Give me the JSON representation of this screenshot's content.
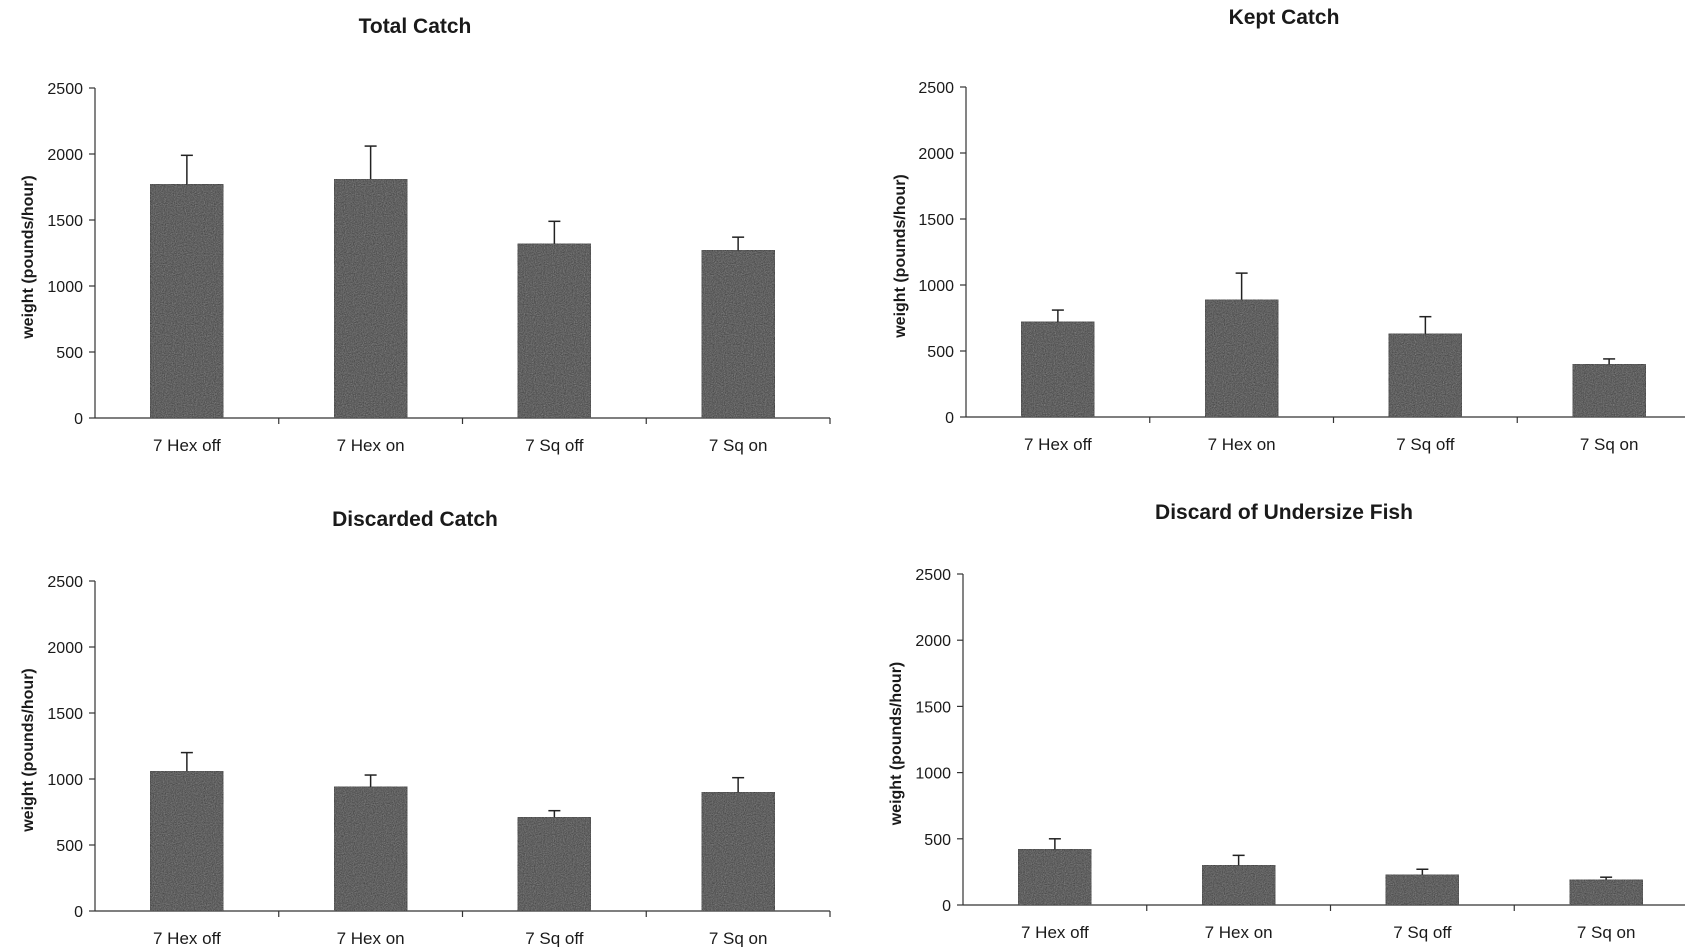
{
  "colors": {
    "bar_fill": "#3a3a3a",
    "bar_stroke": "#222222",
    "axis": "#333333",
    "text": "#1a1a1a",
    "background": "#ffffff"
  },
  "chart_data": [
    {
      "type": "bar",
      "title": "Total Catch",
      "ylabel": "weight (pounds/hour)",
      "xlabel": "",
      "categories": [
        "7 Hex off",
        "7 Hex on",
        "7 Sq off",
        "7 Sq on"
      ],
      "values": [
        1770,
        1810,
        1320,
        1270
      ],
      "error_upper": [
        220,
        250,
        170,
        100
      ],
      "yticks": [
        0,
        500,
        1000,
        1500,
        2000,
        2500
      ],
      "ylim": [
        0,
        2500
      ],
      "grid": false,
      "legend": "none"
    },
    {
      "type": "bar",
      "title": "Kept Catch",
      "ylabel": "weight (pounds/hour)",
      "xlabel": "",
      "categories": [
        "7 Hex off",
        "7 Hex on",
        "7 Sq off",
        "7 Sq on"
      ],
      "values": [
        720,
        890,
        630,
        400
      ],
      "error_upper": [
        90,
        200,
        130,
        40
      ],
      "yticks": [
        0,
        500,
        1000,
        1500,
        2000,
        2500
      ],
      "ylim": [
        0,
        2500
      ],
      "grid": false,
      "legend": "none"
    },
    {
      "type": "bar",
      "title": "Discarded Catch",
      "ylabel": "weight (pounds/hour)",
      "xlabel": "",
      "categories": [
        "7 Hex off",
        "7 Hex on",
        "7 Sq off",
        "7 Sq on"
      ],
      "values": [
        1060,
        940,
        710,
        900
      ],
      "error_upper": [
        140,
        90,
        50,
        110
      ],
      "yticks": [
        0,
        500,
        1000,
        1500,
        2000,
        2500
      ],
      "ylim": [
        0,
        2500
      ],
      "grid": false,
      "legend": "none"
    },
    {
      "type": "bar",
      "title": "Discard of Undersize Fish",
      "ylabel": "weight (pounds/hour)",
      "xlabel": "",
      "categories": [
        "7 Hex off",
        "7 Hex on",
        "7 Sq off",
        "7 Sq on"
      ],
      "values": [
        420,
        300,
        230,
        190
      ],
      "error_upper": [
        80,
        75,
        40,
        20
      ],
      "yticks": [
        0,
        500,
        1000,
        1500,
        2000,
        2500
      ],
      "ylim": [
        0,
        2500
      ],
      "grid": false,
      "legend": "none"
    }
  ]
}
